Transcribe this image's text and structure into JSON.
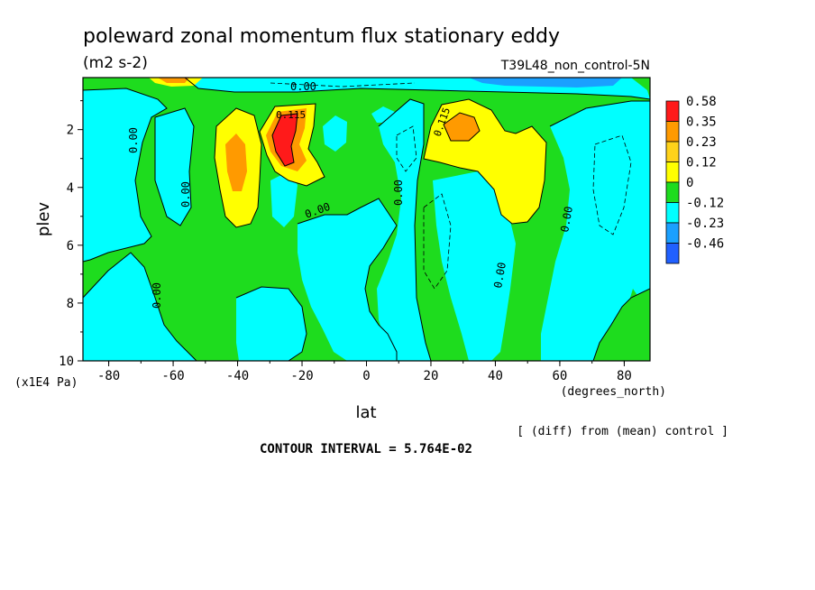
{
  "chart_data": {
    "type": "heatmap",
    "title": "poleward zonal momentum flux stationary eddy",
    "subtitle_units": "(m2 s-2)",
    "run_label": "T39L48_non_control-5N",
    "xlabel": "lat",
    "x_units": "(degrees_north)",
    "ylabel": "plev",
    "y_units": "(x1E4 Pa)",
    "xlim": [
      -88,
      88
    ],
    "ylim": [
      10,
      0.2
    ],
    "x_ticks": [
      -80,
      -60,
      -40,
      -20,
      0,
      20,
      40,
      60,
      80
    ],
    "x_tick_labels": [
      "-80",
      "-60",
      "-40",
      "-20",
      "0",
      "20",
      "40",
      "60",
      "80"
    ],
    "y_ticks": [
      2,
      4,
      6,
      8,
      10
    ],
    "y_tick_labels": [
      "2",
      "4",
      "6",
      "8",
      "10"
    ],
    "colorbar": {
      "levels": [
        "0.58",
        "0.35",
        "0.23",
        "0.12",
        "0",
        "-0.12",
        "-0.23",
        "-0.46"
      ],
      "colors": [
        "#ff1a1a",
        "#ff9a00",
        "#ffd21a",
        "#ffff00",
        "#1edc1e",
        "#00ffff",
        "#1aa0ff",
        "#2060ff"
      ]
    },
    "contour_labels": [
      "0.00",
      "0.115",
      "0.115",
      "0.00",
      "0.00",
      "0.00",
      "0.00",
      "0.00",
      "0.00",
      "0.00"
    ],
    "footer_note": "[ (diff) from (mean) control ]",
    "contour_interval": "CONTOUR INTERVAL = 5.764E-02",
    "grid": false,
    "legend_placement": "right"
  }
}
